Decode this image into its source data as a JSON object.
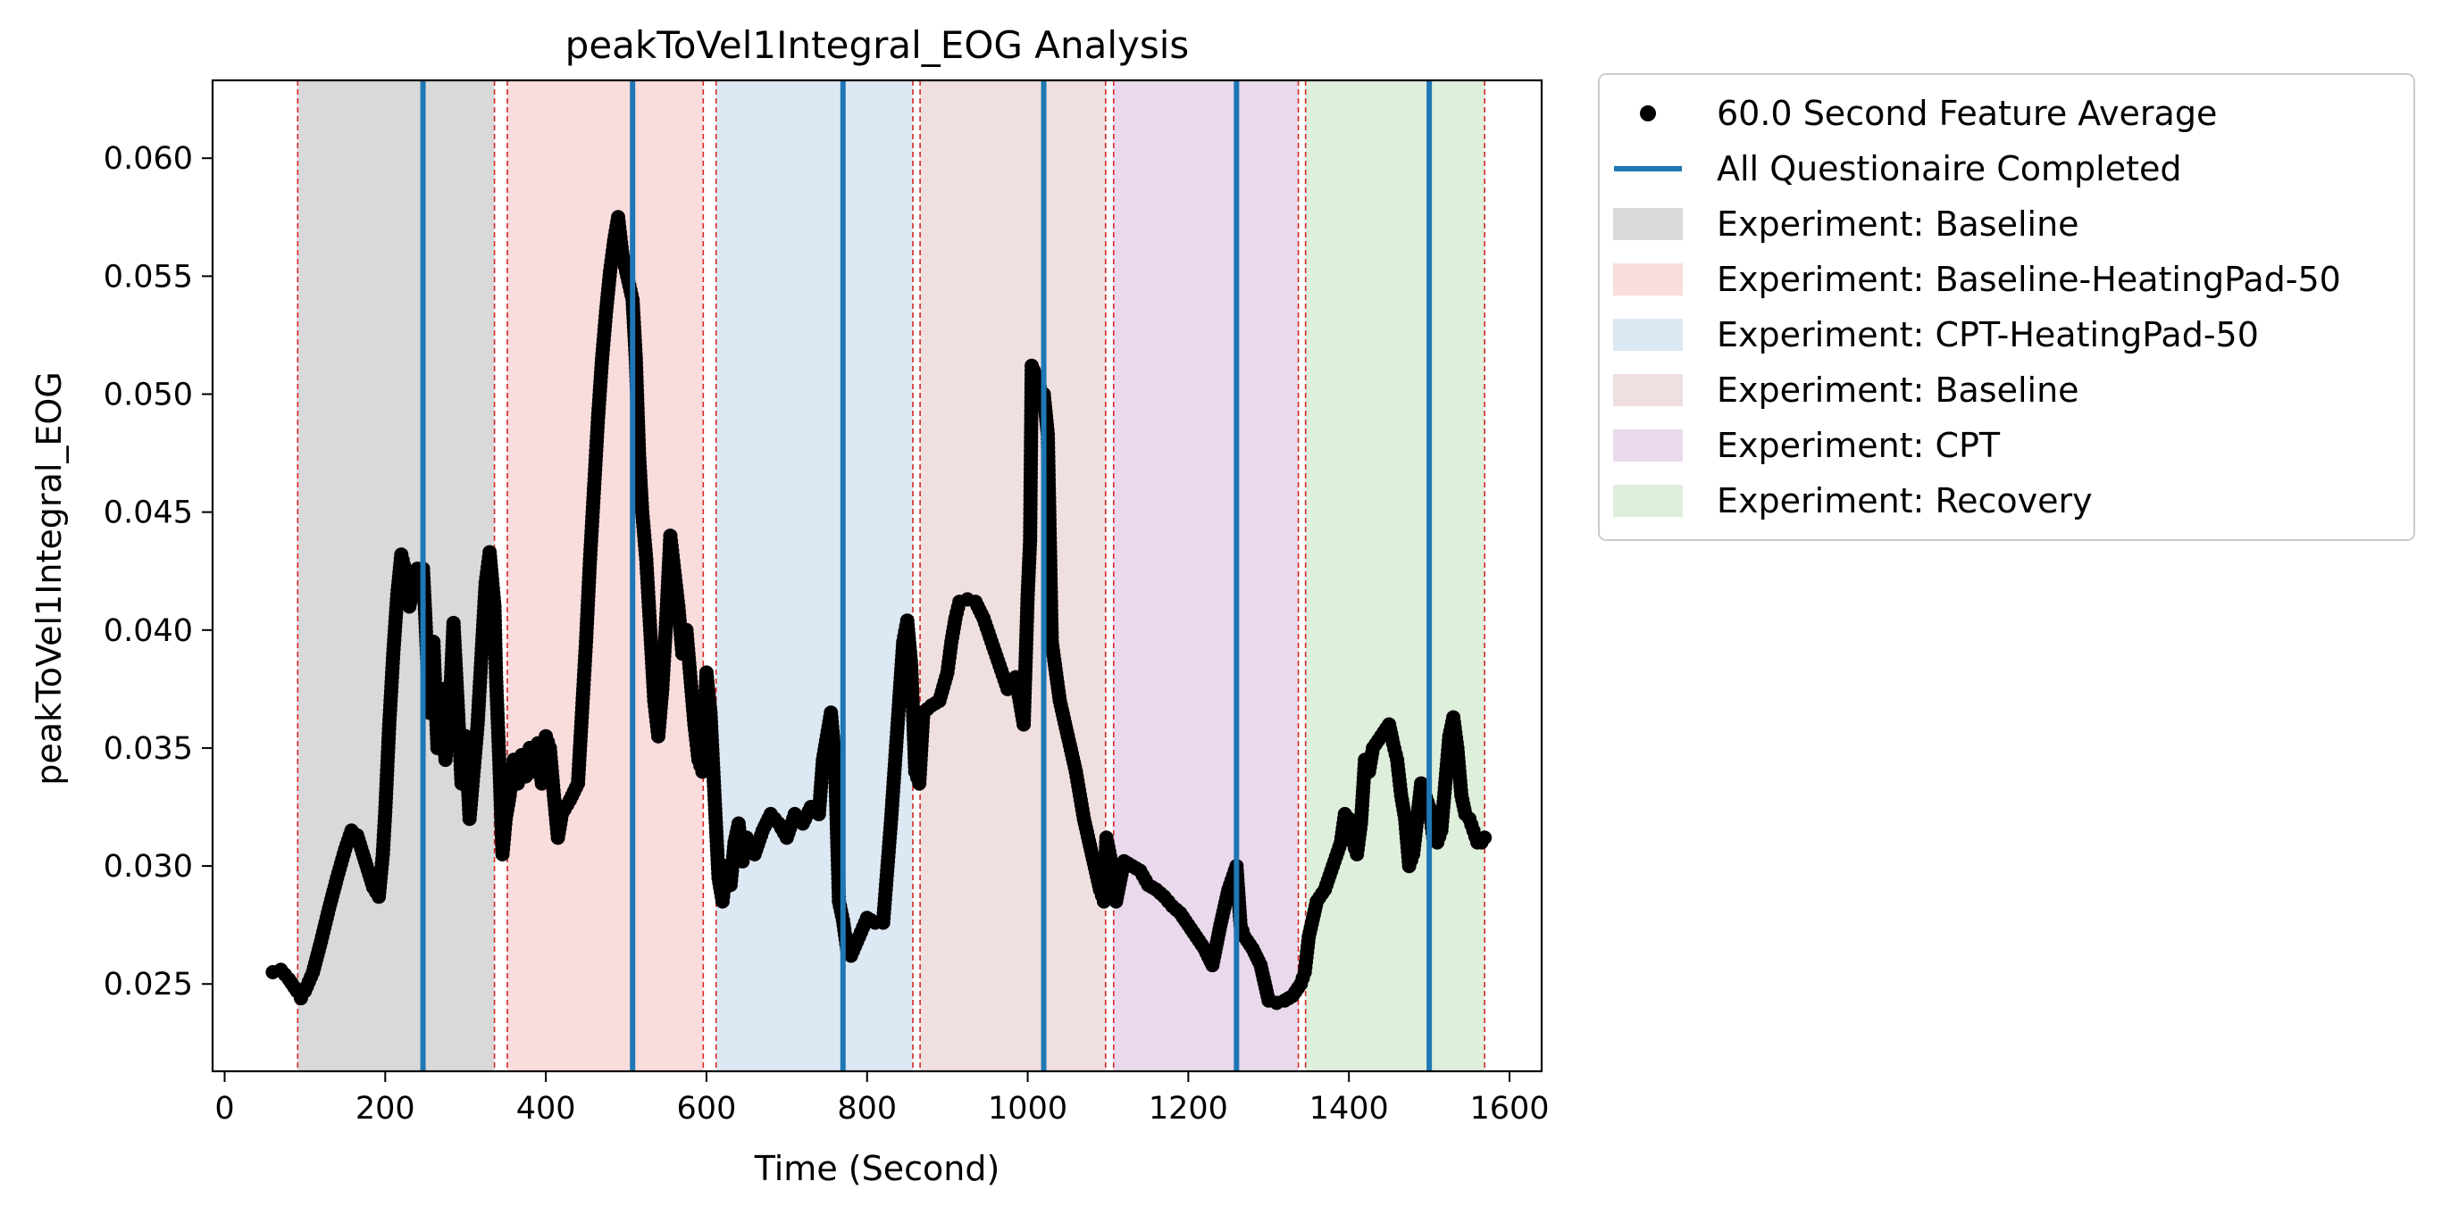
{
  "chart_data": {
    "type": "scatter",
    "title": "peakToVel1Integral_EOG Analysis",
    "xlabel": "Time (Second)",
    "ylabel": "peakToVel1Integral_EOG",
    "xlim": [
      -15,
      1640
    ],
    "ylim": [
      0.0213,
      0.0633
    ],
    "x_ticks": [
      0,
      200,
      400,
      600,
      800,
      1000,
      1200,
      1400,
      1600
    ],
    "x_tick_labels": [
      "0",
      "200",
      "400",
      "600",
      "800",
      "1000",
      "1200",
      "1400",
      "1600"
    ],
    "y_ticks": [
      0.025,
      0.03,
      0.035,
      0.04,
      0.045,
      0.05,
      0.055,
      0.06
    ],
    "y_tick_labels": [
      "0.025",
      "0.030",
      "0.035",
      "0.040",
      "0.045",
      "0.050",
      "0.055",
      "0.060"
    ],
    "grid": false,
    "legend_position": "outside-right",
    "legend": [
      {
        "label": "60.0 Second Feature Average",
        "kind": "marker",
        "color": "#000000"
      },
      {
        "label": "All Questionaire Completed",
        "kind": "line",
        "color": "#1f77b4"
      },
      {
        "label": "Experiment: Baseline",
        "kind": "patch",
        "color": "#d9d9d9"
      },
      {
        "label": "Experiment: Baseline-HeatingPad-50",
        "kind": "patch",
        "color": "#f9dcdc"
      },
      {
        "label": "Experiment: CPT-HeatingPad-50",
        "kind": "patch",
        "color": "#dce8f3"
      },
      {
        "label": "Experiment: Baseline",
        "kind": "patch",
        "color": "#f0dfdf"
      },
      {
        "label": "Experiment: CPT",
        "kind": "patch",
        "color": "#ead8ec"
      },
      {
        "label": "Experiment: Recovery",
        "kind": "patch",
        "color": "#deefdb"
      }
    ],
    "regions": [
      {
        "start": 91,
        "end": 336,
        "color": "#d9d9d9"
      },
      {
        "start": 352,
        "end": 596,
        "color": "#f9dcdc"
      },
      {
        "start": 612,
        "end": 857,
        "color": "#dce8f3"
      },
      {
        "start": 866,
        "end": 1097,
        "color": "#f0dfdf"
      },
      {
        "start": 1107,
        "end": 1337,
        "color": "#ead8ec"
      },
      {
        "start": 1346,
        "end": 1569,
        "color": "#deefdb"
      }
    ],
    "boundary_lines": {
      "color": "#d62728",
      "x": [
        91,
        336,
        352,
        596,
        612,
        857,
        866,
        1097,
        1107,
        1337,
        1346,
        1569
      ]
    },
    "questionnaire_lines": {
      "color": "#1f77b4",
      "x": [
        247,
        508,
        770,
        1020,
        1260,
        1500
      ]
    },
    "series": [
      {
        "name": "60.0 Second Feature Average",
        "color": "#000000",
        "points": [
          [
            60,
            0.0255
          ],
          [
            70,
            0.0256
          ],
          [
            80,
            0.0252
          ],
          [
            90,
            0.0247
          ],
          [
            95,
            0.0244
          ],
          [
            100,
            0.0247
          ],
          [
            110,
            0.0255
          ],
          [
            120,
            0.0268
          ],
          [
            130,
            0.0282
          ],
          [
            140,
            0.0295
          ],
          [
            150,
            0.0307
          ],
          [
            158,
            0.0315
          ],
          [
            165,
            0.0313
          ],
          [
            175,
            0.0302
          ],
          [
            185,
            0.0291
          ],
          [
            192,
            0.0287
          ],
          [
            197,
            0.0305
          ],
          [
            200,
            0.0323
          ],
          [
            205,
            0.036
          ],
          [
            210,
            0.039
          ],
          [
            215,
            0.0415
          ],
          [
            220,
            0.0432
          ],
          [
            225,
            0.0425
          ],
          [
            230,
            0.041
          ],
          [
            240,
            0.0426
          ],
          [
            247,
            0.0426
          ],
          [
            250,
            0.0405
          ],
          [
            255,
            0.0365
          ],
          [
            260,
            0.0395
          ],
          [
            265,
            0.035
          ],
          [
            270,
            0.0375
          ],
          [
            275,
            0.0345
          ],
          [
            280,
            0.0365
          ],
          [
            285,
            0.0403
          ],
          [
            290,
            0.037
          ],
          [
            295,
            0.0335
          ],
          [
            300,
            0.0355
          ],
          [
            305,
            0.032
          ],
          [
            310,
            0.034
          ],
          [
            315,
            0.036
          ],
          [
            320,
            0.039
          ],
          [
            325,
            0.042
          ],
          [
            330,
            0.0433
          ],
          [
            336,
            0.041
          ],
          [
            338,
            0.038
          ],
          [
            342,
            0.0345
          ],
          [
            346,
            0.0305
          ],
          [
            350,
            0.032
          ],
          [
            355,
            0.033
          ],
          [
            360,
            0.0345
          ],
          [
            365,
            0.0335
          ],
          [
            370,
            0.0347
          ],
          [
            375,
            0.0338
          ],
          [
            380,
            0.035
          ],
          [
            385,
            0.034
          ],
          [
            390,
            0.0352
          ],
          [
            395,
            0.0335
          ],
          [
            400,
            0.0355
          ],
          [
            405,
            0.035
          ],
          [
            410,
            0.033
          ],
          [
            415,
            0.0312
          ],
          [
            420,
            0.0322
          ],
          [
            430,
            0.0328
          ],
          [
            440,
            0.0335
          ],
          [
            445,
            0.0365
          ],
          [
            450,
            0.0395
          ],
          [
            455,
            0.043
          ],
          [
            460,
            0.046
          ],
          [
            465,
            0.049
          ],
          [
            470,
            0.0515
          ],
          [
            475,
            0.0535
          ],
          [
            480,
            0.0552
          ],
          [
            485,
            0.0565
          ],
          [
            490,
            0.0575
          ],
          [
            495,
            0.056
          ],
          [
            500,
            0.0552
          ],
          [
            508,
            0.054
          ],
          [
            512,
            0.0515
          ],
          [
            516,
            0.0475
          ],
          [
            520,
            0.045
          ],
          [
            525,
            0.043
          ],
          [
            530,
            0.04
          ],
          [
            535,
            0.037
          ],
          [
            540,
            0.0355
          ],
          [
            545,
            0.0375
          ],
          [
            550,
            0.0405
          ],
          [
            555,
            0.044
          ],
          [
            560,
            0.0425
          ],
          [
            565,
            0.041
          ],
          [
            570,
            0.039
          ],
          [
            575,
            0.04
          ],
          [
            580,
            0.038
          ],
          [
            585,
            0.036
          ],
          [
            590,
            0.0345
          ],
          [
            595,
            0.034
          ],
          [
            600,
            0.0382
          ],
          [
            605,
            0.0365
          ],
          [
            610,
            0.033
          ],
          [
            615,
            0.0295
          ],
          [
            620,
            0.0285
          ],
          [
            625,
            0.03
          ],
          [
            630,
            0.0292
          ],
          [
            635,
            0.031
          ],
          [
            640,
            0.0318
          ],
          [
            645,
            0.0302
          ],
          [
            650,
            0.0312
          ],
          [
            660,
            0.0305
          ],
          [
            670,
            0.0315
          ],
          [
            680,
            0.0322
          ],
          [
            690,
            0.0318
          ],
          [
            700,
            0.0312
          ],
          [
            710,
            0.0322
          ],
          [
            720,
            0.0318
          ],
          [
            730,
            0.0325
          ],
          [
            740,
            0.0322
          ],
          [
            745,
            0.0345
          ],
          [
            750,
            0.0355
          ],
          [
            755,
            0.0365
          ],
          [
            760,
            0.0345
          ],
          [
            765,
            0.0285
          ],
          [
            770,
            0.0277
          ],
          [
            775,
            0.0265
          ],
          [
            780,
            0.0262
          ],
          [
            790,
            0.027
          ],
          [
            800,
            0.0278
          ],
          [
            810,
            0.0276
          ],
          [
            820,
            0.0276
          ],
          [
            825,
            0.0298
          ],
          [
            830,
            0.032
          ],
          [
            835,
            0.0345
          ],
          [
            840,
            0.037
          ],
          [
            845,
            0.0395
          ],
          [
            850,
            0.0404
          ],
          [
            855,
            0.0385
          ],
          [
            860,
            0.034
          ],
          [
            865,
            0.0335
          ],
          [
            870,
            0.0365
          ],
          [
            880,
            0.0368
          ],
          [
            890,
            0.037
          ],
          [
            900,
            0.0382
          ],
          [
            905,
            0.0395
          ],
          [
            910,
            0.0405
          ],
          [
            915,
            0.0412
          ],
          [
            925,
            0.0413
          ],
          [
            935,
            0.0412
          ],
          [
            945,
            0.0405
          ],
          [
            955,
            0.0395
          ],
          [
            965,
            0.0385
          ],
          [
            975,
            0.0375
          ],
          [
            985,
            0.038
          ],
          [
            990,
            0.037
          ],
          [
            995,
            0.036
          ],
          [
            1000,
            0.0415
          ],
          [
            1003,
            0.0438
          ],
          [
            1005,
            0.0512
          ],
          [
            1010,
            0.0508
          ],
          [
            1015,
            0.0503
          ],
          [
            1020,
            0.05
          ],
          [
            1025,
            0.0483
          ],
          [
            1030,
            0.0395
          ],
          [
            1040,
            0.037
          ],
          [
            1050,
            0.0355
          ],
          [
            1060,
            0.034
          ],
          [
            1070,
            0.032
          ],
          [
            1080,
            0.0305
          ],
          [
            1090,
            0.029
          ],
          [
            1095,
            0.0285
          ],
          [
            1098,
            0.0312
          ],
          [
            1105,
            0.03
          ],
          [
            1110,
            0.0285
          ],
          [
            1120,
            0.0302
          ],
          [
            1130,
            0.03
          ],
          [
            1140,
            0.0298
          ],
          [
            1150,
            0.0292
          ],
          [
            1160,
            0.029
          ],
          [
            1170,
            0.0287
          ],
          [
            1180,
            0.0283
          ],
          [
            1190,
            0.028
          ],
          [
            1200,
            0.0275
          ],
          [
            1210,
            0.027
          ],
          [
            1220,
            0.0265
          ],
          [
            1230,
            0.0258
          ],
          [
            1240,
            0.0275
          ],
          [
            1250,
            0.029
          ],
          [
            1260,
            0.03
          ],
          [
            1265,
            0.0275
          ],
          [
            1270,
            0.027
          ],
          [
            1280,
            0.0265
          ],
          [
            1290,
            0.0258
          ],
          [
            1300,
            0.0243
          ],
          [
            1310,
            0.0242
          ],
          [
            1320,
            0.0243
          ],
          [
            1330,
            0.0245
          ],
          [
            1340,
            0.025
          ],
          [
            1345,
            0.0255
          ],
          [
            1350,
            0.027
          ],
          [
            1360,
            0.0285
          ],
          [
            1370,
            0.029
          ],
          [
            1380,
            0.03
          ],
          [
            1390,
            0.031
          ],
          [
            1395,
            0.0322
          ],
          [
            1400,
            0.032
          ],
          [
            1405,
            0.031
          ],
          [
            1410,
            0.0305
          ],
          [
            1415,
            0.0318
          ],
          [
            1420,
            0.0345
          ],
          [
            1425,
            0.034
          ],
          [
            1430,
            0.035
          ],
          [
            1440,
            0.0355
          ],
          [
            1450,
            0.036
          ],
          [
            1455,
            0.0352
          ],
          [
            1460,
            0.0345
          ],
          [
            1465,
            0.033
          ],
          [
            1470,
            0.032
          ],
          [
            1475,
            0.03
          ],
          [
            1480,
            0.0305
          ],
          [
            1490,
            0.0335
          ],
          [
            1500,
            0.0325
          ],
          [
            1505,
            0.0312
          ],
          [
            1510,
            0.031
          ],
          [
            1515,
            0.0315
          ],
          [
            1520,
            0.0335
          ],
          [
            1525,
            0.0355
          ],
          [
            1530,
            0.0363
          ],
          [
            1535,
            0.035
          ],
          [
            1540,
            0.033
          ],
          [
            1545,
            0.0322
          ],
          [
            1550,
            0.032
          ],
          [
            1555,
            0.0315
          ],
          [
            1560,
            0.031
          ],
          [
            1565,
            0.031
          ],
          [
            1569,
            0.0312
          ]
        ]
      }
    ]
  }
}
